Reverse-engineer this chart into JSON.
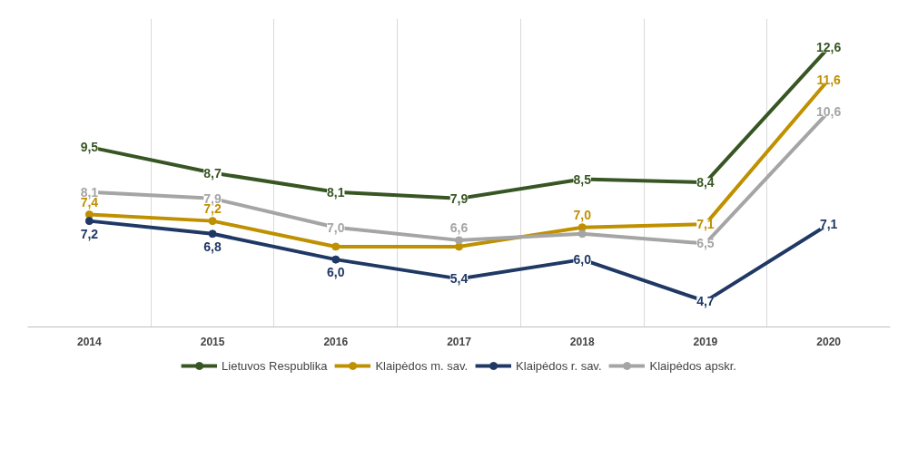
{
  "chart_data": {
    "type": "line",
    "categories": [
      "2014",
      "2015",
      "2016",
      "2017",
      "2018",
      "2019",
      "2020"
    ],
    "ylim": [
      3.9,
      13.5
    ],
    "tick_labels": "x",
    "grid": "x",
    "legend": "bottom",
    "data_labels": true,
    "line_style": "solid",
    "marker": "circle",
    "series": [
      {
        "name": "Lietuvos Respublika",
        "color": "#375623",
        "values": [
          9.5,
          8.7,
          8.1,
          7.9,
          8.5,
          8.4,
          12.6
        ],
        "value_labels": [
          "9,5",
          "8,7",
          "8,1",
          "7,9",
          "8,5",
          "8,4",
          "12,6"
        ]
      },
      {
        "name": "Klaipėdos m. sav.",
        "color": "#bf9000",
        "values": [
          7.4,
          7.2,
          6.4,
          6.4,
          7.0,
          7.1,
          11.6
        ],
        "value_labels": [
          "7,4",
          "7,2",
          null,
          null,
          "7,0",
          "7,1",
          "11,6"
        ]
      },
      {
        "name": "Klaipėdos r. sav.",
        "color": "#1f3864",
        "values": [
          7.2,
          6.8,
          6.0,
          5.4,
          6.0,
          4.7,
          7.1
        ],
        "value_labels": [
          "7,2",
          "6,8",
          "6,0",
          "5,4",
          "6,0",
          "4,7",
          "7,1"
        ]
      },
      {
        "name": "Klaipėdos apskr.",
        "color": "#a5a5a5",
        "values": [
          8.1,
          7.9,
          7.0,
          6.6,
          6.8,
          6.5,
          10.6
        ],
        "value_labels": [
          "8,1",
          "7,9",
          "7,0",
          "6,6",
          null,
          "6,5",
          "10,6"
        ]
      }
    ]
  }
}
